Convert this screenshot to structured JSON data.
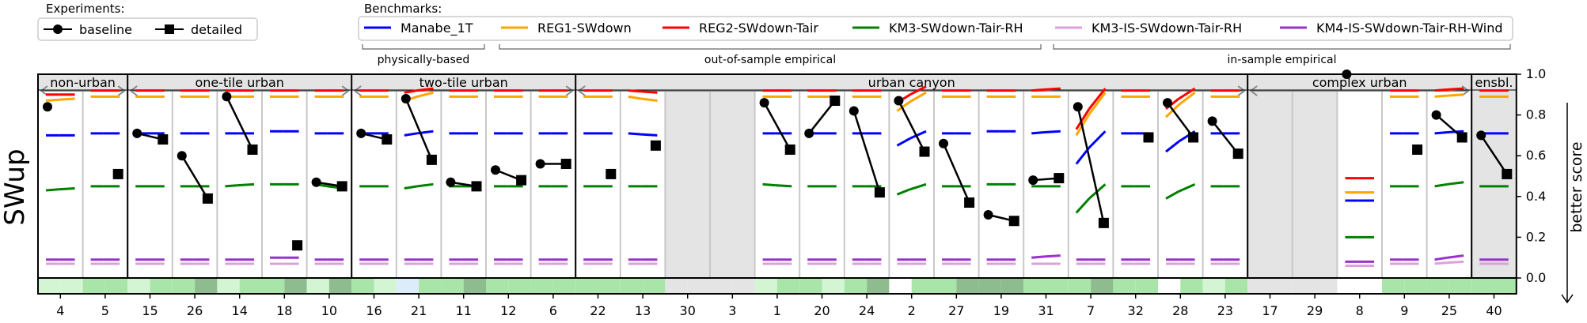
{
  "chart_data": {
    "type": "scatter",
    "ylabel": "SWup",
    "right_label": "better score",
    "ylim": [
      0,
      1
    ],
    "yticks": [
      "0.0",
      "0.2",
      "0.4",
      "0.6",
      "0.8",
      "1.0"
    ],
    "experiments_title": "Experiments:",
    "benchmarks_title": "Benchmarks:",
    "experiments": [
      {
        "name": "baseline",
        "marker": "circle"
      },
      {
        "name": "detailed",
        "marker": "square"
      }
    ],
    "benchmarks": [
      {
        "name": "Manabe_1T",
        "color": "#0000ff"
      },
      {
        "name": "REG1-SWdown",
        "color": "#ffa500"
      },
      {
        "name": "REG2-SWdown-Tair",
        "color": "#ff0000"
      },
      {
        "name": "KM3-SWdown-Tair-RH",
        "color": "#008000"
      },
      {
        "name": "KM3-IS-SWdown-Tair-RH",
        "color": "#dda0dd"
      },
      {
        "name": "KM4-IS-SWdown-Tair-RH-Wind",
        "color": "#9932cc"
      }
    ],
    "benchmark_groups": [
      {
        "label": "physically-based",
        "from": 0,
        "to": 0
      },
      {
        "label": "out-of-sample empirical",
        "from": 1,
        "to": 3
      },
      {
        "label": "in-sample empirical",
        "from": 4,
        "to": 5
      }
    ],
    "classes": [
      {
        "label": "non-urban",
        "from": 0,
        "to": 1
      },
      {
        "label": "one-tile urban",
        "from": 2,
        "to": 6
      },
      {
        "label": "two-tile urban",
        "from": 7,
        "to": 11
      },
      {
        "label": "urban canyon",
        "from": 12,
        "to": 26
      },
      {
        "label": "complex urban",
        "from": 27,
        "to": 31
      },
      {
        "label": "ensbl.",
        "from": 32,
        "to": 32
      }
    ],
    "models": [
      {
        "id": "4",
        "baseline": 0.84,
        "detailed": null,
        "shaded": false,
        "bench": [
          [
            0.7,
            0.7
          ],
          [
            0.87,
            0.88
          ],
          [
            0.9,
            0.9
          ],
          [
            0.43,
            0.44
          ],
          [
            0.07,
            0.07
          ],
          [
            0.09,
            0.09
          ]
        ],
        "strip": [
          "#d3f5d3",
          "#d3f5d3"
        ]
      },
      {
        "id": "5",
        "baseline": null,
        "detailed": 0.51,
        "shaded": false,
        "bench": [
          [
            0.71,
            0.71
          ],
          [
            0.89,
            0.89
          ],
          [
            0.92,
            0.92
          ],
          [
            0.45,
            0.45
          ],
          [
            0.07,
            0.07
          ],
          [
            0.09,
            0.09
          ]
        ],
        "strip": [
          "#a9e5a9",
          "#a9e5a9"
        ]
      },
      {
        "id": "15",
        "baseline": 0.71,
        "detailed": 0.68,
        "shaded": false,
        "bench": [
          [
            0.71,
            0.71
          ],
          [
            0.89,
            0.89
          ],
          [
            0.92,
            0.92
          ],
          [
            0.45,
            0.45
          ],
          [
            0.07,
            0.07
          ],
          [
            0.09,
            0.09
          ]
        ],
        "strip": [
          "#d3f5d3",
          "#a9e5a9"
        ]
      },
      {
        "id": "26",
        "baseline": 0.6,
        "detailed": 0.39,
        "shaded": false,
        "bench": [
          [
            0.71,
            0.71
          ],
          [
            0.89,
            0.89
          ],
          [
            0.92,
            0.92
          ],
          [
            0.45,
            0.45
          ],
          [
            0.07,
            0.07
          ],
          [
            0.09,
            0.09
          ]
        ],
        "strip": [
          "#a9e5a9",
          "#8fbc8f"
        ]
      },
      {
        "id": "14",
        "baseline": 0.89,
        "detailed": 0.63,
        "shaded": false,
        "bench": [
          [
            0.71,
            0.71
          ],
          [
            0.89,
            0.89
          ],
          [
            0.92,
            0.92
          ],
          [
            0.45,
            0.46
          ],
          [
            0.07,
            0.07
          ],
          [
            0.09,
            0.09
          ]
        ],
        "strip": [
          "#d3f5d3",
          "#a9e5a9"
        ]
      },
      {
        "id": "18",
        "baseline": null,
        "detailed": 0.16,
        "shaded": false,
        "bench": [
          [
            0.72,
            0.72
          ],
          [
            0.89,
            0.89
          ],
          [
            0.92,
            0.92
          ],
          [
            0.46,
            0.46
          ],
          [
            0.07,
            0.07
          ],
          [
            0.1,
            0.1
          ]
        ],
        "strip": [
          "#a9e5a9",
          "#8fbc8f"
        ]
      },
      {
        "id": "10",
        "baseline": 0.47,
        "detailed": 0.45,
        "shaded": false,
        "bench": [
          [
            0.71,
            0.71
          ],
          [
            0.89,
            0.89
          ],
          [
            0.92,
            0.92
          ],
          [
            0.46,
            0.44
          ],
          [
            0.07,
            0.07
          ],
          [
            0.09,
            0.09
          ]
        ],
        "strip": [
          "#d3f5d3",
          "#8fbc8f"
        ]
      },
      {
        "id": "16",
        "baseline": 0.71,
        "detailed": 0.68,
        "shaded": false,
        "bench": [
          [
            0.71,
            0.71
          ],
          [
            0.89,
            0.89
          ],
          [
            0.92,
            0.92
          ],
          [
            0.45,
            0.45
          ],
          [
            0.07,
            0.07
          ],
          [
            0.09,
            0.09
          ]
        ],
        "strip": [
          "#a9e5a9",
          "#d3f5d3"
        ]
      },
      {
        "id": "21",
        "baseline": 0.88,
        "detailed": 0.58,
        "shaded": false,
        "bench": [
          [
            0.7,
            0.72
          ],
          [
            0.87,
            0.91
          ],
          [
            0.91,
            0.93
          ],
          [
            0.44,
            0.46
          ],
          [
            0.07,
            0.07
          ],
          [
            0.09,
            0.09
          ]
        ],
        "strip": [
          "#dcecf8",
          "#a9e5a9"
        ]
      },
      {
        "id": "11",
        "baseline": 0.47,
        "detailed": 0.45,
        "shaded": false,
        "bench": [
          [
            0.71,
            0.71
          ],
          [
            0.89,
            0.89
          ],
          [
            0.92,
            0.92
          ],
          [
            0.45,
            0.45
          ],
          [
            0.07,
            0.07
          ],
          [
            0.09,
            0.09
          ]
        ],
        "strip": [
          "#a9e5a9",
          "#8fbc8f"
        ]
      },
      {
        "id": "12",
        "baseline": 0.53,
        "detailed": 0.48,
        "shaded": false,
        "bench": [
          [
            0.71,
            0.71
          ],
          [
            0.89,
            0.89
          ],
          [
            0.92,
            0.92
          ],
          [
            0.45,
            0.45
          ],
          [
            0.07,
            0.07
          ],
          [
            0.09,
            0.09
          ]
        ],
        "strip": [
          "#a9e5a9",
          "#a9e5a9"
        ]
      },
      {
        "id": "6",
        "baseline": 0.56,
        "detailed": 0.56,
        "shaded": false,
        "bench": [
          [
            0.71,
            0.71
          ],
          [
            0.89,
            0.89
          ],
          [
            0.92,
            0.92
          ],
          [
            0.45,
            0.45
          ],
          [
            0.07,
            0.07
          ],
          [
            0.09,
            0.09
          ]
        ],
        "strip": [
          "#a9e5a9",
          "#a9e5a9"
        ]
      },
      {
        "id": "22",
        "baseline": null,
        "detailed": 0.51,
        "shaded": false,
        "bench": [
          [
            0.71,
            0.71
          ],
          [
            0.89,
            0.89
          ],
          [
            0.92,
            0.92
          ],
          [
            0.45,
            0.45
          ],
          [
            0.07,
            0.07
          ],
          [
            0.09,
            0.09
          ]
        ],
        "strip": [
          "#a9e5a9",
          "#a9e5a9"
        ]
      },
      {
        "id": "13",
        "baseline": null,
        "detailed": 0.65,
        "shaded": false,
        "bench": [
          [
            0.71,
            0.7
          ],
          [
            0.89,
            0.87
          ],
          [
            0.92,
            0.91
          ],
          [
            0.45,
            0.45
          ],
          [
            0.07,
            0.07
          ],
          [
            0.09,
            0.09
          ]
        ],
        "strip": [
          "#a9e5a9",
          "#a9e5a9"
        ]
      },
      {
        "id": "30",
        "baseline": null,
        "detailed": null,
        "shaded": true,
        "bench": [],
        "strip": [
          "#e4e4e4",
          "#e4e4e4"
        ]
      },
      {
        "id": "3",
        "baseline": null,
        "detailed": null,
        "shaded": true,
        "bench": [],
        "strip": [
          "#e4e4e4",
          "#e4e4e4"
        ]
      },
      {
        "id": "1",
        "baseline": 0.86,
        "detailed": 0.63,
        "shaded": false,
        "bench": [
          [
            0.71,
            0.71
          ],
          [
            0.89,
            0.89
          ],
          [
            0.92,
            0.92
          ],
          [
            0.46,
            0.45
          ],
          [
            0.07,
            0.07
          ],
          [
            0.09,
            0.09
          ]
        ],
        "strip": [
          "#d3f5d3",
          "#a9e5a9"
        ]
      },
      {
        "id": "20",
        "baseline": 0.71,
        "detailed": 0.87,
        "shaded": false,
        "bench": [
          [
            0.71,
            0.71
          ],
          [
            0.89,
            0.89
          ],
          [
            0.92,
            0.92
          ],
          [
            0.45,
            0.45
          ],
          [
            0.07,
            0.07
          ],
          [
            0.09,
            0.09
          ]
        ],
        "strip": [
          "#a9e5a9",
          "#d3f5d3"
        ]
      },
      {
        "id": "24",
        "baseline": 0.82,
        "detailed": 0.42,
        "shaded": false,
        "bench": [
          [
            0.71,
            0.71
          ],
          [
            0.89,
            0.89
          ],
          [
            0.92,
            0.92
          ],
          [
            0.45,
            0.45
          ],
          [
            0.07,
            0.07
          ],
          [
            0.09,
            0.09
          ]
        ],
        "strip": [
          "#a9e5a9",
          "#8fbc8f"
        ]
      },
      {
        "id": "2",
        "baseline": 0.87,
        "detailed": 0.62,
        "shaded": false,
        "bench": [
          [
            0.65,
            0.72
          ],
          [
            0.82,
            0.91
          ],
          [
            0.86,
            0.94
          ],
          [
            0.41,
            0.46
          ],
          [
            0.07,
            0.07
          ],
          [
            0.09,
            0.09
          ]
        ],
        "strip": [
          "#ffffff",
          "#a9e5a9"
        ]
      },
      {
        "id": "27",
        "baseline": 0.66,
        "detailed": 0.37,
        "shaded": false,
        "bench": [
          [
            0.71,
            0.71
          ],
          [
            0.89,
            0.89
          ],
          [
            0.92,
            0.92
          ],
          [
            0.45,
            0.45
          ],
          [
            0.07,
            0.07
          ],
          [
            0.09,
            0.09
          ]
        ],
        "strip": [
          "#a9e5a9",
          "#8fbc8f"
        ]
      },
      {
        "id": "19",
        "baseline": 0.31,
        "detailed": 0.28,
        "shaded": false,
        "bench": [
          [
            0.72,
            0.72
          ],
          [
            0.89,
            0.89
          ],
          [
            0.92,
            0.92
          ],
          [
            0.46,
            0.46
          ],
          [
            0.07,
            0.07
          ],
          [
            0.09,
            0.09
          ]
        ],
        "strip": [
          "#8fbc8f",
          "#8fbc8f"
        ]
      },
      {
        "id": "31",
        "baseline": 0.48,
        "detailed": 0.49,
        "shaded": false,
        "bench": [
          [
            0.71,
            0.72
          ],
          [
            0.89,
            0.89
          ],
          [
            0.92,
            0.93
          ],
          [
            0.45,
            0.45
          ],
          [
            0.07,
            0.07
          ],
          [
            0.1,
            0.11
          ]
        ],
        "strip": [
          "#a9e5a9",
          "#a9e5a9"
        ]
      },
      {
        "id": "7",
        "baseline": 0.84,
        "detailed": 0.27,
        "shaded": false,
        "bench": [
          [
            0.56,
            0.72
          ],
          [
            0.7,
            0.91
          ],
          [
            0.73,
            0.93
          ],
          [
            0.32,
            0.46
          ],
          [
            0.07,
            0.07
          ],
          [
            0.09,
            0.09
          ]
        ],
        "strip": [
          "#a9e5a9",
          "#8fbc8f"
        ]
      },
      {
        "id": "32",
        "baseline": null,
        "detailed": 0.69,
        "shaded": false,
        "bench": [
          [
            0.71,
            0.71
          ],
          [
            0.89,
            0.89
          ],
          [
            0.92,
            0.92
          ],
          [
            0.45,
            0.45
          ],
          [
            0.07,
            0.07
          ],
          [
            0.09,
            0.09
          ]
        ],
        "strip": [
          "#a9e5a9",
          "#a9e5a9"
        ]
      },
      {
        "id": "28",
        "baseline": 0.86,
        "detailed": 0.69,
        "shaded": false,
        "bench": [
          [
            0.62,
            0.72
          ],
          [
            0.79,
            0.91
          ],
          [
            0.83,
            0.93
          ],
          [
            0.39,
            0.46
          ],
          [
            0.07,
            0.07
          ],
          [
            0.09,
            0.09
          ]
        ],
        "strip": [
          "#ffffff",
          "#a9e5a9"
        ]
      },
      {
        "id": "23",
        "baseline": 0.77,
        "detailed": 0.61,
        "shaded": false,
        "bench": [
          [
            0.71,
            0.71
          ],
          [
            0.89,
            0.89
          ],
          [
            0.92,
            0.92
          ],
          [
            0.45,
            0.45
          ],
          [
            0.07,
            0.07
          ],
          [
            0.09,
            0.09
          ]
        ],
        "strip": [
          "#d3f5d3",
          "#a9e5a9"
        ]
      },
      {
        "id": "17",
        "baseline": null,
        "detailed": null,
        "shaded": true,
        "bench": [],
        "strip": [
          "#e4e4e4",
          "#e4e4e4"
        ]
      },
      {
        "id": "29",
        "baseline": null,
        "detailed": null,
        "shaded": true,
        "bench": [],
        "strip": [
          "#e4e4e4",
          "#e4e4e4"
        ]
      },
      {
        "id": "8",
        "baseline": 1.0,
        "detailed": null,
        "shaded": false,
        "bench": [
          [
            0.38,
            0.38
          ],
          [
            0.42,
            0.42
          ],
          [
            0.49,
            0.49
          ],
          [
            0.2,
            0.2
          ],
          [
            0.06,
            0.06
          ],
          [
            0.08,
            0.08
          ]
        ],
        "strip": [
          "#ffffff",
          "#ffffff"
        ]
      },
      {
        "id": "9",
        "baseline": null,
        "detailed": 0.63,
        "shaded": false,
        "bench": [
          [
            0.71,
            0.71
          ],
          [
            0.89,
            0.89
          ],
          [
            0.92,
            0.92
          ],
          [
            0.45,
            0.45
          ],
          [
            0.07,
            0.07
          ],
          [
            0.09,
            0.09
          ]
        ],
        "strip": [
          "#a9e5a9",
          "#a9e5a9"
        ]
      },
      {
        "id": "25",
        "baseline": 0.8,
        "detailed": 0.69,
        "shaded": false,
        "bench": [
          [
            0.71,
            0.72
          ],
          [
            0.89,
            0.9
          ],
          [
            0.92,
            0.93
          ],
          [
            0.45,
            0.47
          ],
          [
            0.07,
            0.08
          ],
          [
            0.09,
            0.11
          ]
        ],
        "strip": [
          "#a9e5a9",
          "#a9e5a9"
        ]
      },
      {
        "id": "40",
        "baseline": 0.7,
        "detailed": 0.51,
        "shaded": true,
        "bench": [
          [
            0.71,
            0.71
          ],
          [
            0.89,
            0.89
          ],
          [
            0.92,
            0.92
          ],
          [
            0.45,
            0.45
          ],
          [
            0.07,
            0.07
          ],
          [
            0.09,
            0.09
          ]
        ],
        "strip": [
          "#a9e5a9",
          "#a9e5a9"
        ]
      }
    ]
  }
}
